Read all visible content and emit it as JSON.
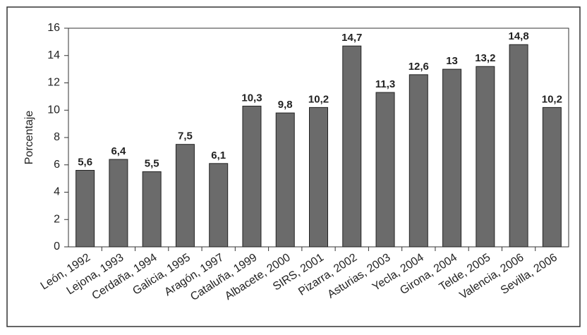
{
  "chart_data": {
    "type": "bar",
    "y_label": "Porcentaje",
    "categories": [
      "León, 1992",
      "Lejona, 1993",
      "Cerdaña, 1994",
      "Galicia, 1995",
      "Aragón, 1997",
      "Cataluña, 1999",
      "Albacete, 2000",
      "SIRS, 2001",
      "Pizarra, 2002",
      "Asturias, 2003",
      "Yecla, 2004",
      "Girona, 2004",
      "Telde, 2005",
      "Valencia, 2006",
      "Sevilla, 2006"
    ],
    "values": [
      5.6,
      6.4,
      5.5,
      7.5,
      6.1,
      10.3,
      9.8,
      10.2,
      14.7,
      11.3,
      12.6,
      13,
      13.2,
      14.8,
      10.2
    ],
    "value_labels": [
      "5,6",
      "6,4",
      "5,5",
      "7,5",
      "6,1",
      "10,3",
      "9,8",
      "10,2",
      "14,7",
      "11,3",
      "12,6",
      "13",
      "13,2",
      "14,8",
      "10,2"
    ],
    "color": "#6b6b6b",
    "ylim": [
      0,
      16
    ],
    "yticks": [
      0,
      2,
      4,
      6,
      8,
      10,
      12,
      14,
      16
    ],
    "grid": false
  }
}
